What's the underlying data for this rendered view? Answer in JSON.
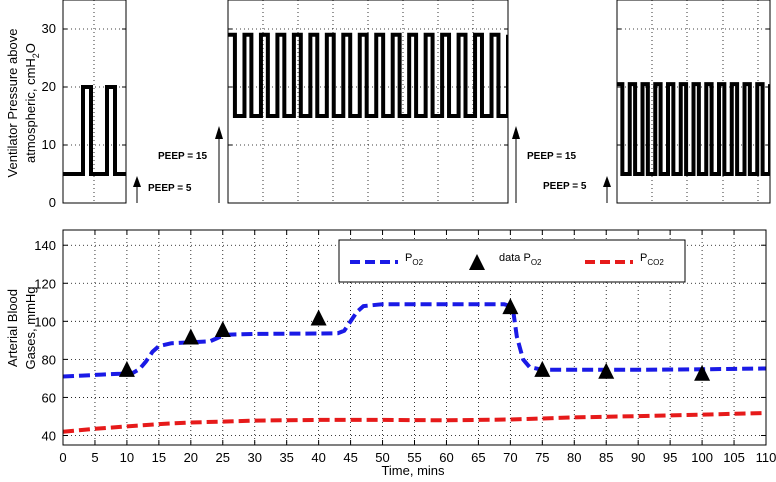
{
  "chart_data": [
    {
      "type": "line",
      "id": "ventilator",
      "ylabel_line1": "Ventilator Pressure above",
      "ylabel_line2_main": "atmospheric, cmH",
      "ylabel_sub1": "2",
      "ylabel_tail": "O",
      "ylim": [
        0,
        35
      ],
      "yticks": [
        0,
        10,
        20,
        30
      ],
      "grid": true,
      "panels": [
        {
          "name": "left",
          "peep": 5,
          "peak": 20,
          "pulses": 2
        },
        {
          "name": "middle",
          "peep": 15,
          "peak": 29,
          "pulses": 17
        },
        {
          "name": "right",
          "peep": 5,
          "peak": 20.5,
          "pulses": 12
        }
      ],
      "annotations": [
        "PEEP = 5",
        "PEEP = 15",
        "PEEP = 15",
        "PEEP = 5"
      ]
    },
    {
      "type": "line",
      "id": "bloodgas",
      "xlabel": "Time, mins",
      "ylabel_line1": "Arterial Blood",
      "ylabel_line2": "Gases, mmHg",
      "xlim": [
        0,
        110
      ],
      "ylim": [
        35,
        148
      ],
      "xticks": [
        0,
        5,
        10,
        15,
        20,
        25,
        30,
        35,
        40,
        45,
        50,
        55,
        60,
        65,
        70,
        75,
        80,
        85,
        90,
        95,
        100,
        105,
        110
      ],
      "yticks": [
        40,
        60,
        80,
        100,
        120,
        140
      ],
      "grid": true,
      "legend_position": "top-right",
      "legend": {
        "po2_main": "P",
        "po2_sub": "O2",
        "data_main": "data P",
        "data_sub": "O2",
        "pco2_main": "P",
        "pco2_sub": "CO2"
      },
      "series": [
        {
          "name": "PO2",
          "color": "#1a1ae6",
          "style": "dashed",
          "x": [
            0,
            3,
            6,
            9,
            11,
            12,
            13,
            14,
            15,
            17,
            20,
            23,
            24,
            25,
            26,
            28,
            30,
            35,
            40,
            43,
            44,
            45,
            46,
            47,
            50,
            55,
            60,
            65,
            69,
            70,
            70.5,
            71,
            72,
            73,
            75,
            80,
            90,
            100,
            110
          ],
          "y": [
            71,
            71.5,
            72,
            72.5,
            73,
            75,
            79,
            84,
            87,
            88.5,
            89,
            89.5,
            91,
            92.5,
            93,
            93.2,
            93.4,
            93.5,
            93.6,
            93.7,
            95,
            100,
            105,
            108,
            109,
            109,
            109,
            109,
            109,
            108,
            104,
            92,
            80,
            76,
            74.5,
            74.5,
            74.5,
            74.8,
            75.2
          ]
        },
        {
          "name": "data PO2",
          "color": "#000000",
          "style": "triangle-markers",
          "x": [
            10,
            20,
            25,
            40,
            70,
            75,
            85,
            100
          ],
          "y": [
            75,
            92,
            96,
            102,
            108,
            75,
            74,
            73
          ]
        },
        {
          "name": "PCO2",
          "color": "#e61a1a",
          "style": "dashed",
          "x": [
            0,
            5,
            10,
            15,
            20,
            25,
            30,
            40,
            50,
            60,
            70,
            80,
            90,
            100,
            110
          ],
          "y": [
            42,
            43.5,
            44.8,
            46,
            46.8,
            47.3,
            47.8,
            48.2,
            48.2,
            48,
            48.4,
            49.5,
            50.2,
            51,
            51.8
          ]
        }
      ]
    }
  ]
}
